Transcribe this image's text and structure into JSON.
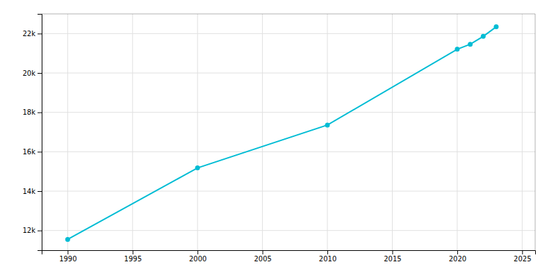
{
  "chart_data": {
    "type": "line",
    "x": [
      1990,
      2000,
      2010,
      2020,
      2021,
      2022,
      2023
    ],
    "values": [
      11551,
      15178,
      17357,
      21206,
      21457,
      21859,
      22343
    ],
    "color": "#00BCD4",
    "marker": "circle",
    "xlim": [
      1988,
      2026
    ],
    "ylim": [
      11000,
      23000
    ],
    "xticks": [
      1990,
      1995,
      2000,
      2005,
      2010,
      2015,
      2020,
      2025
    ],
    "yticks": [
      {
        "value": 12000,
        "label": "12k"
      },
      {
        "value": 14000,
        "label": "14k"
      },
      {
        "value": 16000,
        "label": "16k"
      },
      {
        "value": 18000,
        "label": "18k"
      },
      {
        "value": 20000,
        "label": "20k"
      },
      {
        "value": 22000,
        "label": "22k"
      }
    ],
    "grid": true
  }
}
